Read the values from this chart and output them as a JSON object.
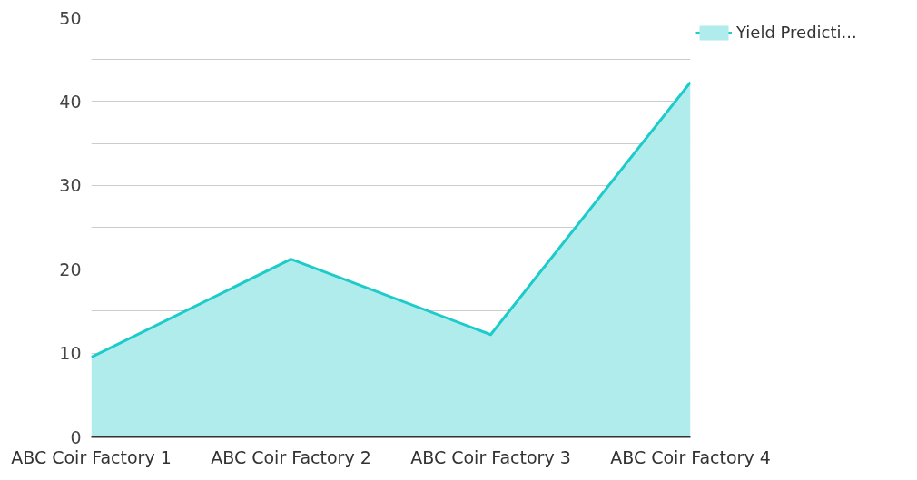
{
  "chart_data": {
    "type": "area",
    "categories": [
      "ABC Coir Factory 1",
      "ABC Coir Factory 2",
      "ABC Coir Factory 3",
      "ABC Coir Factory 4"
    ],
    "series": [
      {
        "name": "Yield Predicti...",
        "color": "#1ecbcb",
        "values": [
          9.5,
          21.2,
          12.2,
          42.3
        ]
      }
    ],
    "ylim": [
      0,
      50
    ],
    "yticks": [
      0,
      {
        "value": 5,
        "label": null
      },
      10,
      {
        "value": 15,
        "label": null
      },
      20,
      {
        "value": 25,
        "label": null
      },
      30,
      {
        "value": 35,
        "label": null
      },
      40,
      {
        "value": 45,
        "label": null
      },
      50
    ],
    "grid": "y",
    "legend": "top right"
  }
}
